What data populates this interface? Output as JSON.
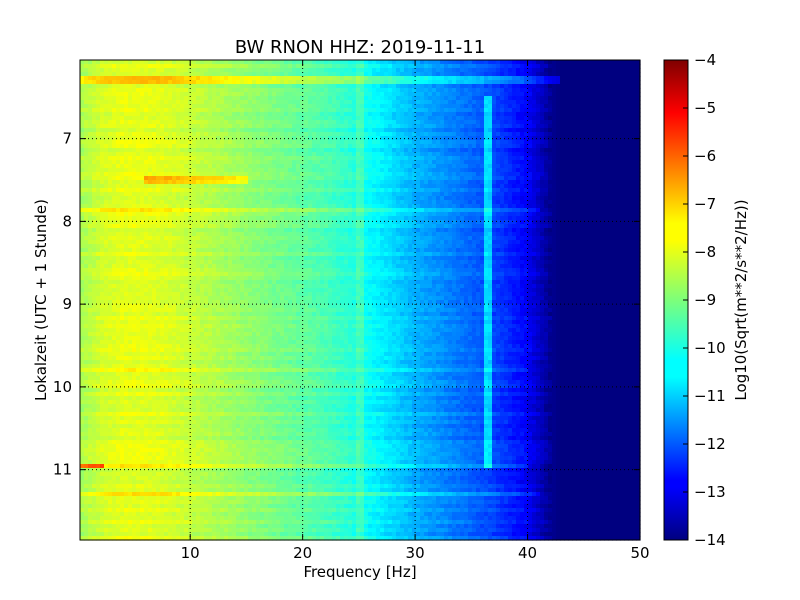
{
  "chart_data": {
    "type": "heatmap",
    "title": "BW RNON HHZ: 2019-11-11",
    "xlabel": "Frequency [Hz]",
    "ylabel": "Lokalzeit (UTC + 1 Stunde)",
    "xlim": [
      0.2,
      50
    ],
    "ylim": [
      6.05,
      11.85
    ],
    "y_inverted": true,
    "x_ticks": [
      10,
      20,
      30,
      40,
      50
    ],
    "y_ticks": [
      7,
      8,
      9,
      10,
      11
    ],
    "grid": true,
    "colormap": "jet",
    "colorbar": {
      "label": "Log10(Sqrt(m**2/s**2/Hz))",
      "range": [
        -14,
        -4
      ],
      "ticks": [
        -4,
        -5,
        -6,
        -7,
        -8,
        -9,
        -10,
        -11,
        -12,
        -13,
        -14
      ]
    },
    "spectrum_profile": {
      "frequency_hz": [
        0.2,
        2,
        4,
        6,
        8,
        10,
        12,
        14,
        16,
        18,
        20,
        22,
        24,
        26,
        28,
        30,
        32,
        34,
        36,
        38,
        40,
        41,
        42,
        43,
        44,
        46,
        48,
        50
      ],
      "log_amplitude": [
        -8.6,
        -8.2,
        -8.0,
        -8.0,
        -8.1,
        -8.3,
        -8.5,
        -8.7,
        -8.9,
        -9.1,
        -9.3,
        -9.5,
        -9.8,
        -10.2,
        -10.6,
        -11.0,
        -11.3,
        -11.6,
        -11.9,
        -12.3,
        -12.8,
        -13.3,
        -13.8,
        -14.0,
        -14.0,
        -14.0,
        -14.0,
        -14.0
      ]
    },
    "features": [
      {
        "kind": "horizontal-band",
        "time": 6.3,
        "freq_range": [
          0.2,
          43
        ],
        "delta": 0.9
      },
      {
        "kind": "horizontal-band",
        "time": 7.5,
        "freq_range": [
          6,
          15
        ],
        "delta": 1.0
      },
      {
        "kind": "horizontal-band",
        "time": 7.85,
        "freq_range": [
          0.2,
          41
        ],
        "delta": 0.6
      },
      {
        "kind": "horizontal-band",
        "time": 9.8,
        "freq_range": [
          0.2,
          40
        ],
        "delta": 0.4
      },
      {
        "kind": "horizontal-band",
        "time": 10.95,
        "freq_range": [
          0.2,
          2.5
        ],
        "delta": 2.3
      },
      {
        "kind": "horizontal-band",
        "time": 10.95,
        "freq_range": [
          2.5,
          40
        ],
        "delta": 0.6
      },
      {
        "kind": "horizontal-band",
        "time": 11.3,
        "freq_range": [
          0.2,
          41
        ],
        "delta": 0.5
      },
      {
        "kind": "vertical-line",
        "freq": 36.5,
        "time_range": [
          6.5,
          11.0
        ],
        "delta": 1.4
      },
      {
        "kind": "vertical-line",
        "freq": 25,
        "time_range": [
          6.05,
          11.85
        ],
        "delta": 0.4
      }
    ]
  }
}
